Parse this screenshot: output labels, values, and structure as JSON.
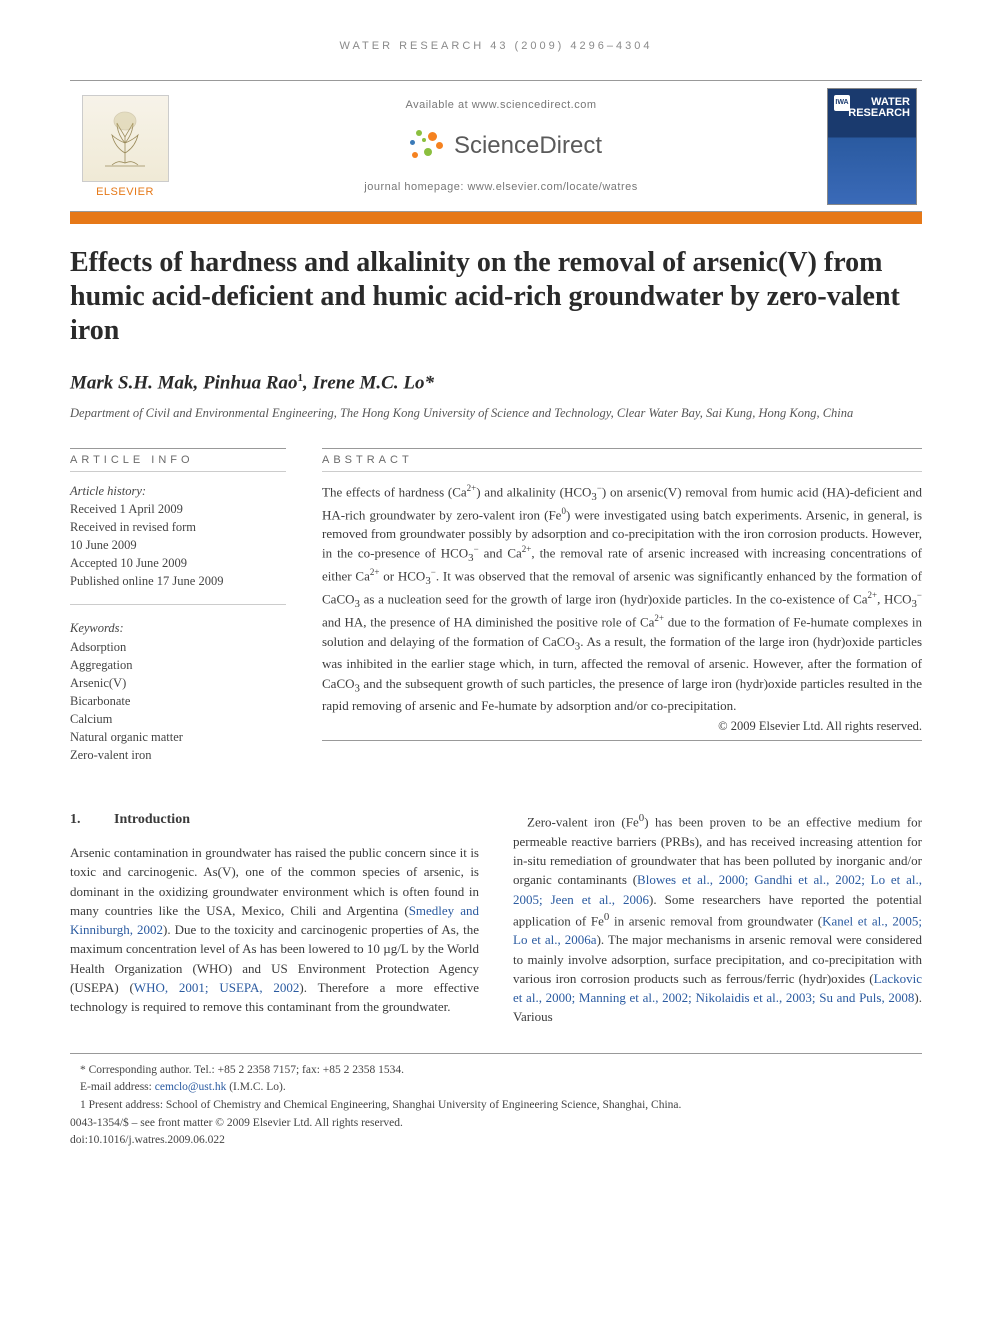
{
  "running_header": "WATER RESEARCH 43 (2009) 4296–4304",
  "masthead": {
    "available_line": "Available at www.sciencedirect.com",
    "sd_brand": "ScienceDirect",
    "journal_homepage_label": "journal homepage: ",
    "journal_homepage_url": "www.elsevier.com/locate/watres",
    "elsevier_word": "ELSEVIER",
    "cover_badge": "IWA",
    "cover_title_line1": "WATER",
    "cover_title_line2": "RESEARCH"
  },
  "colors": {
    "orange": "#e67817",
    "link": "#2a5aa0",
    "cover_top": "#1a3a6e",
    "cover_bottom": "#3a6ab8",
    "sd_orange": "#f58220",
    "sd_green": "#8bbf3f",
    "sd_blue": "#3a7ab8"
  },
  "title": "Effects of hardness and alkalinity on the removal of arsenic(V) from humic acid-deficient and humic acid-rich groundwater by zero-valent iron",
  "authors_html": "Mark S.H. Mak, Pinhua Rao<sup>1</sup>, Irene M.C. Lo*",
  "affiliation": "Department of Civil and Environmental Engineering, The Hong Kong University of Science and Technology, Clear Water Bay, Sai Kung, Hong Kong, China",
  "article_info": {
    "heading": "ARTICLE INFO",
    "history_label": "Article history:",
    "history": [
      "Received 1 April 2009",
      "Received in revised form",
      "10 June 2009",
      "Accepted 10 June 2009",
      "Published online 17 June 2009"
    ],
    "keywords_label": "Keywords:",
    "keywords": [
      "Adsorption",
      "Aggregation",
      "Arsenic(V)",
      "Bicarbonate",
      "Calcium",
      "Natural organic matter",
      "Zero-valent iron"
    ]
  },
  "abstract": {
    "heading": "ABSTRACT",
    "text_html": "The effects of hardness (Ca<sup>2+</sup>) and alkalinity (HCO<sub>3</sub><sup>−</sup>) on arsenic(V) removal from humic acid (HA)-deficient and HA-rich groundwater by zero-valent iron (Fe<sup>0</sup>) were investigated using batch experiments. Arsenic, in general, is removed from groundwater possibly by adsorption and co-precipitation with the iron corrosion products. However, in the co-presence of HCO<sub>3</sub><sup>−</sup> and Ca<sup>2+</sup>, the removal rate of arsenic increased with increasing concentrations of either Ca<sup>2+</sup> or HCO<sub>3</sub><sup>−</sup>. It was observed that the removal of arsenic was significantly enhanced by the formation of CaCO<sub>3</sub> as a nucleation seed for the growth of large iron (hydr)oxide particles. In the co-existence of Ca<sup>2+</sup>, HCO<sub>3</sub><sup>−</sup> and HA, the presence of HA diminished the positive role of Ca<sup>2+</sup> due to the formation of Fe-humate complexes in solution and delaying of the formation of CaCO<sub>3</sub>. As a result, the formation of the large iron (hydr)oxide particles was inhibited in the earlier stage which, in turn, affected the removal of arsenic. However, after the formation of CaCO<sub>3</sub> and the subsequent growth of such particles, the presence of large iron (hydr)oxide particles resulted in the rapid removing of arsenic and Fe-humate by adsorption and/or co-precipitation.",
    "copyright": "© 2009 Elsevier Ltd. All rights reserved."
  },
  "body": {
    "section_number": "1.",
    "section_title": "Introduction",
    "col1_html": "Arsenic contamination in groundwater has raised the public concern since it is toxic and carcinogenic. As(V), one of the common species of arsenic, is dominant in the oxidizing groundwater environment which is often found in many countries like the USA, Mexico, Chili and Argentina (<span class=\"ref-link\">Smedley and Kinniburgh, 2002</span>). Due to the toxicity and carcinogenic properties of As, the maximum concentration level of As has been lowered to 10 µg/L by the World Health Organization (WHO) and US Environment Protection Agency (USEPA) (<span class=\"ref-link\">WHO, 2001; USEPA, 2002</span>). Therefore a more effective technology is required to remove this contaminant from the groundwater.",
    "col2_html": "Zero-valent iron (Fe<sup>0</sup>) has been proven to be an effective medium for permeable reactive barriers (PRBs), and has received increasing attention for in-situ remediation of groundwater that has been polluted by inorganic and/or organic contaminants (<span class=\"ref-link\">Blowes et al., 2000; Gandhi et al., 2002; Lo et al., 2005; Jeen et al., 2006</span>). Some researchers have reported the potential application of Fe<sup>0</sup> in arsenic removal from groundwater (<span class=\"ref-link\">Kanel et al., 2005; Lo et al., 2006a</span>). The major mechanisms in arsenic removal were considered to mainly involve adsorption, surface precipitation, and co-precipitation with various iron corrosion products such as ferrous/ferric (hydr)oxides (<span class=\"ref-link\">Lackovic et al., 2000; Manning et al., 2002; Nikolaidis et al., 2003; Su and Puls, 2008</span>). Various"
  },
  "footnotes": {
    "corresponding": "* Corresponding author. Tel.: +85 2 2358 7157; fax: +85 2 2358 1534.",
    "email_label": "E-mail address: ",
    "email": "cemclo@ust.hk",
    "email_paren": " (I.M.C. Lo).",
    "present_address": "1 Present address: School of Chemistry and Chemical Engineering, Shanghai University of Engineering Science, Shanghai, China.",
    "issn_line": "0043-1354/$ – see front matter © 2009 Elsevier Ltd. All rights reserved.",
    "doi": "doi:10.1016/j.watres.2009.06.022"
  }
}
